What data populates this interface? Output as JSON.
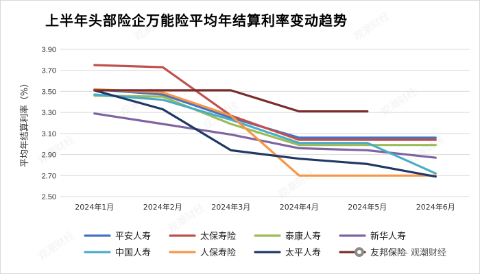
{
  "chart_data": {
    "type": "line",
    "title": "上半年头部险企万能险平均年结算利率变动趋势",
    "ylabel": "平均年结算利率（%）",
    "xlabel": "",
    "categories": [
      "2024年1月",
      "2024年2月",
      "2024年3月",
      "2024年4月",
      "2024年5月",
      "2024年6月"
    ],
    "ylim": [
      2.5,
      3.9
    ],
    "yticks": [
      "2.50",
      "2.70",
      "2.90",
      "3.10",
      "3.30",
      "3.50",
      "3.70",
      "3.90"
    ],
    "grid": true,
    "legend_position": "bottom",
    "series": [
      {
        "name": "平安人寿",
        "color": "#4472c4",
        "values": [
          3.52,
          3.47,
          3.25,
          3.06,
          3.06,
          3.06
        ]
      },
      {
        "name": "太保寿险",
        "color": "#c0504d",
        "values": [
          3.75,
          3.73,
          3.27,
          3.04,
          3.04,
          3.04
        ]
      },
      {
        "name": "泰康人寿",
        "color": "#9bbb59",
        "values": [
          3.46,
          3.45,
          3.19,
          2.99,
          2.99,
          2.99
        ]
      },
      {
        "name": "新华人寿",
        "color": "#8064a2",
        "values": [
          3.29,
          3.19,
          3.09,
          2.96,
          2.94,
          2.87
        ]
      },
      {
        "name": "中国人寿",
        "color": "#4bacc6",
        "values": [
          3.47,
          3.42,
          3.23,
          3.01,
          3.01,
          2.72
        ]
      },
      {
        "name": "人保寿险",
        "color": "#f79646",
        "values": [
          3.52,
          3.49,
          3.27,
          2.7,
          2.7,
          2.7
        ]
      },
      {
        "name": "太平人寿",
        "color": "#1f3864",
        "values": [
          3.51,
          3.33,
          2.94,
          2.86,
          2.81,
          2.69
        ]
      },
      {
        "name": "友邦保险",
        "color": "#7b2c2c",
        "values": [
          3.51,
          3.51,
          3.51,
          3.31,
          3.31,
          null
        ]
      }
    ]
  },
  "watermark": {
    "text": "观潮财经"
  },
  "credit": {
    "text": "- 观潮财经"
  }
}
